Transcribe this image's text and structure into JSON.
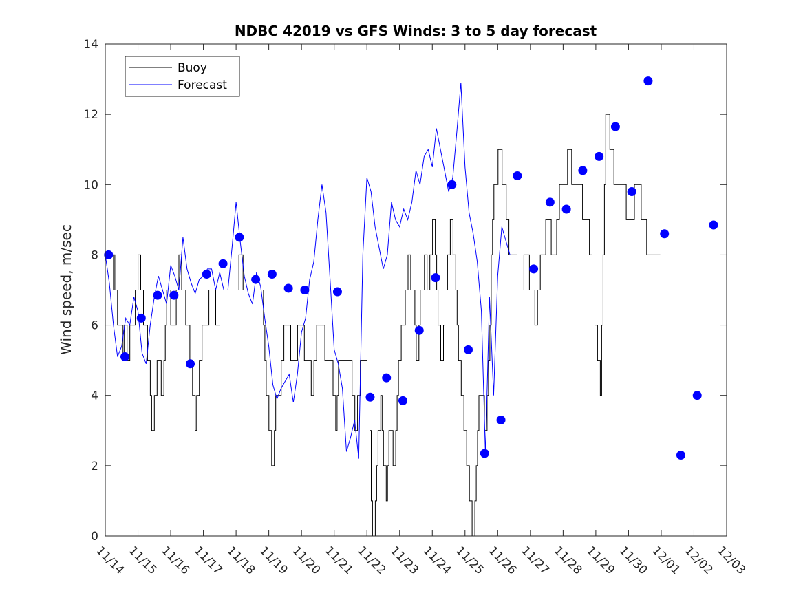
{
  "chart_data": {
    "type": "line",
    "title": "NDBC 42019 vs GFS Winds: 3 to 5 day forecast",
    "xlabel": "",
    "ylabel": "Wind speed, m/sec",
    "xlim": [
      0,
      19
    ],
    "ylim": [
      0,
      14
    ],
    "yticks": [
      0,
      2,
      4,
      6,
      8,
      10,
      12,
      14
    ],
    "xtick_labels": [
      "11/14",
      "11/15",
      "11/16",
      "11/17",
      "11/18",
      "11/19",
      "11/20",
      "11/21",
      "11/22",
      "11/23",
      "11/24",
      "11/25",
      "11/26",
      "11/27",
      "11/28",
      "11/29",
      "11/30",
      "12/01",
      "12/02",
      "12/03"
    ],
    "legend": {
      "position": "top-left",
      "entries": [
        {
          "label": "Buoy",
          "color": "#000000"
        },
        {
          "label": "Forecast",
          "color": "#0000ff"
        }
      ]
    },
    "series": [
      {
        "name": "Buoy",
        "color": "#000000",
        "x_start": 0,
        "x_step": 0.0417,
        "values": [
          7,
          7,
          7,
          7,
          7,
          7,
          8,
          7,
          7,
          6,
          6,
          6,
          6,
          5,
          6,
          6,
          5,
          5,
          6,
          6,
          6,
          6,
          7,
          7,
          8,
          8,
          7,
          7,
          6,
          6,
          6,
          5,
          5,
          4,
          3,
          3,
          4,
          4,
          5,
          5,
          5,
          4,
          4,
          5,
          6,
          7,
          7,
          7,
          6,
          6,
          6,
          6,
          7,
          7,
          8,
          8,
          7,
          7,
          7,
          6,
          6,
          6,
          5,
          5,
          4,
          4,
          3,
          4,
          4,
          5,
          5,
          6,
          6,
          6,
          6,
          6,
          7,
          7,
          7,
          7,
          7,
          6,
          6,
          6,
          7,
          7,
          7,
          7,
          7,
          7,
          7,
          7,
          7,
          7,
          7,
          7,
          7,
          7,
          8,
          8,
          8,
          7,
          7,
          7,
          7,
          7,
          7,
          7,
          7,
          7,
          7,
          7,
          7,
          7,
          7,
          7,
          6,
          5,
          4,
          4,
          3,
          3,
          2,
          2,
          3,
          4,
          4,
          4,
          4,
          5,
          5,
          6,
          6,
          6,
          6,
          6,
          5,
          5,
          5,
          5,
          5,
          6,
          6,
          6,
          6,
          6,
          5,
          5,
          5,
          5,
          5,
          4,
          4,
          5,
          5,
          6,
          6,
          6,
          6,
          6,
          6,
          5,
          5,
          5,
          5,
          5,
          5,
          4,
          4,
          3,
          4,
          5,
          5,
          5,
          5,
          5,
          5,
          5,
          5,
          5,
          5,
          4,
          4,
          3,
          3,
          4,
          4,
          5,
          5,
          5,
          5,
          5,
          4,
          4,
          3,
          1,
          0,
          0,
          1,
          2,
          3,
          3,
          4,
          3,
          2,
          2,
          1,
          2,
          3,
          3,
          3,
          2,
          2,
          3,
          4,
          5,
          5,
          6,
          6,
          6,
          7,
          7,
          8,
          8,
          7,
          7,
          7,
          6,
          5,
          5,
          6,
          7,
          7,
          7,
          8,
          8,
          7,
          7,
          8,
          8,
          9,
          9,
          8,
          7,
          6,
          6,
          5,
          5,
          6,
          7,
          7,
          8,
          8,
          9,
          9,
          8,
          8,
          7,
          6,
          5,
          5,
          4,
          4,
          3,
          3,
          2,
          2,
          1,
          1,
          0,
          0,
          1,
          2,
          3,
          4,
          4,
          4,
          4,
          3,
          3,
          4,
          5,
          6,
          8,
          9,
          10,
          10,
          10,
          11,
          11,
          11,
          10,
          10,
          10,
          9,
          9,
          8,
          8,
          8,
          8,
          8,
          8,
          7,
          7,
          7,
          7,
          7,
          8,
          8,
          8,
          8,
          7,
          7,
          7,
          7,
          6,
          6,
          7,
          7,
          8,
          8,
          8,
          8,
          9,
          9,
          9,
          9,
          8,
          8,
          8,
          8,
          9,
          9,
          10,
          10,
          10,
          10,
          10,
          10,
          11,
          11,
          11,
          10,
          10,
          10,
          10,
          10,
          10,
          10,
          10,
          9,
          9,
          9,
          9,
          9,
          8,
          8,
          7,
          7,
          6,
          6,
          5,
          5,
          4,
          6,
          8,
          10,
          12,
          12,
          12,
          11,
          11,
          11,
          10,
          10,
          10,
          10,
          10,
          10,
          10,
          10,
          10,
          9,
          9,
          9,
          9,
          9,
          9,
          10,
          10,
          10,
          10,
          10,
          9,
          9,
          9,
          9,
          8,
          8,
          8,
          8,
          8,
          8,
          8,
          8,
          8,
          8
        ]
      },
      {
        "name": "Forecast",
        "color": "#0000ff",
        "x_start": 0,
        "x_step": 0.125,
        "values": [
          8.0,
          7.2,
          6.0,
          5.1,
          5.4,
          6.2,
          6.0,
          6.8,
          6.4,
          5.2,
          4.9,
          6.0,
          6.8,
          7.4,
          7.0,
          6.6,
          7.7,
          7.4,
          7.0,
          8.5,
          7.6,
          7.2,
          6.9,
          7.3,
          7.4,
          7.6,
          7.6,
          7.0,
          7.5,
          7.0,
          7.0,
          8.2,
          9.5,
          8.4,
          7.4,
          6.9,
          6.6,
          7.5,
          7.1,
          6.2,
          5.4,
          4.3,
          3.9,
          4.2,
          4.4,
          4.6,
          3.8,
          4.6,
          5.8,
          6.2,
          7.3,
          7.8,
          9.0,
          10.0,
          9.2,
          7.3,
          5.3,
          4.9,
          4.2,
          2.4,
          2.8,
          3.3,
          2.2,
          8.0,
          10.2,
          9.8,
          8.8,
          8.2,
          7.6,
          8.0,
          9.5,
          9.0,
          8.8,
          9.3,
          9.0,
          9.5,
          10.4,
          10.0,
          10.8,
          11.0,
          10.5,
          11.6,
          11.0,
          10.4,
          9.8,
          10.2,
          11.5,
          12.9,
          10.5,
          9.2,
          8.6,
          7.8,
          6.4,
          2.3,
          6.8,
          4.0,
          7.4,
          8.8,
          8.4,
          8.0
        ]
      },
      {
        "name": "Forecast-markers",
        "color": "#0000ff",
        "points": [
          [
            0.1,
            8.0
          ],
          [
            0.6,
            5.1
          ],
          [
            1.1,
            6.2
          ],
          [
            1.6,
            6.85
          ],
          [
            2.1,
            6.85
          ],
          [
            2.6,
            4.9
          ],
          [
            3.1,
            7.45
          ],
          [
            3.6,
            7.75
          ],
          [
            4.1,
            8.5
          ],
          [
            4.6,
            7.3
          ],
          [
            5.1,
            7.45
          ],
          [
            5.6,
            7.05
          ],
          [
            6.1,
            7.0
          ],
          [
            7.1,
            6.95
          ],
          [
            8.1,
            3.95
          ],
          [
            8.6,
            4.5
          ],
          [
            9.1,
            3.85
          ],
          [
            9.6,
            5.85
          ],
          [
            10.1,
            7.35
          ],
          [
            10.6,
            10.0
          ],
          [
            11.1,
            5.3
          ],
          [
            11.6,
            2.35
          ],
          [
            12.1,
            3.3
          ],
          [
            12.6,
            10.25
          ],
          [
            13.1,
            7.6
          ],
          [
            13.6,
            9.5
          ],
          [
            14.1,
            9.3
          ],
          [
            14.6,
            10.4
          ],
          [
            15.1,
            10.8
          ],
          [
            15.6,
            11.65
          ],
          [
            16.1,
            9.8
          ],
          [
            16.6,
            12.95
          ],
          [
            17.1,
            8.6
          ],
          [
            17.6,
            2.3
          ],
          [
            18.1,
            4.0
          ],
          [
            18.6,
            8.85
          ]
        ]
      }
    ]
  }
}
